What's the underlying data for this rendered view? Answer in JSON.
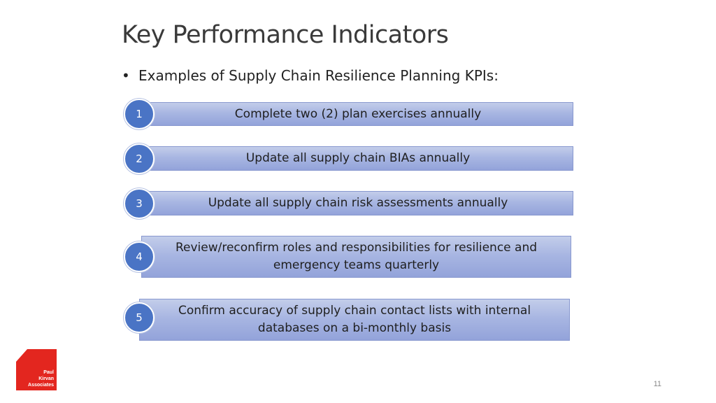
{
  "slide": {
    "title": "Key Performance Indicators",
    "bullet_marker": "•",
    "bullet_text": "Examples of Supply Chain Resilience Planning KPIs:",
    "page_number": "11"
  },
  "kpis": [
    {
      "number": "1",
      "text": "Complete two (2) plan exercises annually"
    },
    {
      "number": "2",
      "text": "Update all supply chain BIAs annually"
    },
    {
      "number": "3",
      "text": "Update all supply chain risk assessments annually"
    },
    {
      "number": "4",
      "text": "Review/reconfirm roles and responsibilities for resilience and emergency teams quarterly"
    },
    {
      "number": "5",
      "text": "Confirm accuracy of supply chain contact lists with internal databases on a bi-monthly basis"
    }
  ],
  "logo": {
    "line1": "Paul",
    "line2": "Kirvan",
    "line3": "Associates",
    "color": "#e3261f"
  },
  "colors": {
    "badge": "#4a74c5",
    "bar_top": "#c3cdea",
    "bar_bottom": "#93a3da"
  }
}
